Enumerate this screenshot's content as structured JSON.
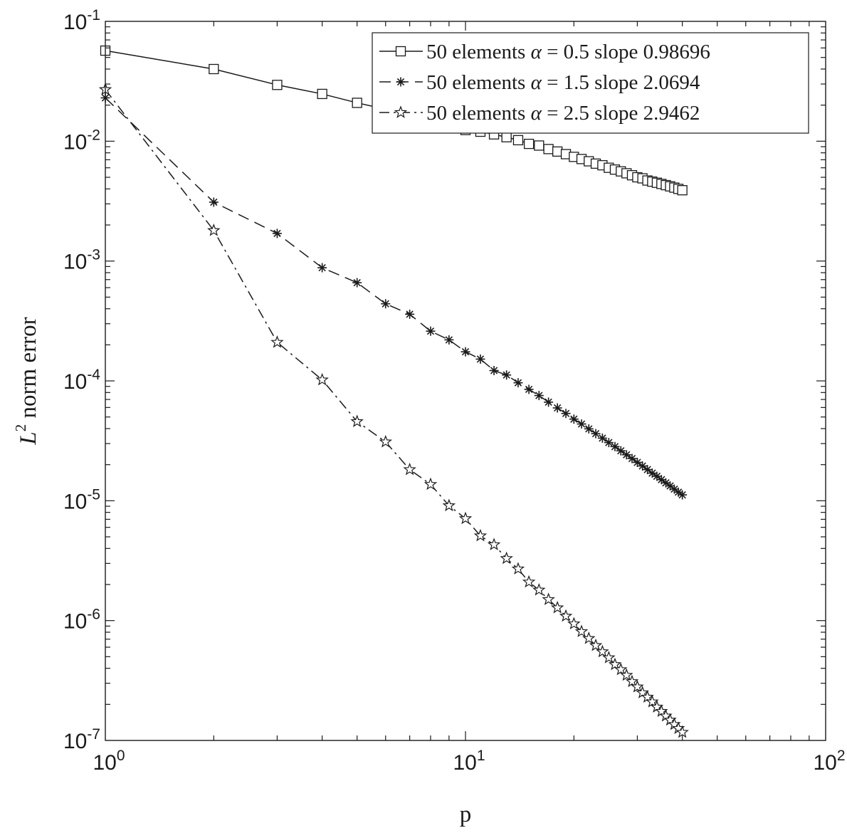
{
  "chart_data": {
    "type": "line",
    "xscale": "log",
    "yscale": "log",
    "xlim": [
      1,
      100
    ],
    "ylim": [
      1e-07,
      0.1
    ],
    "grid": false,
    "legend_position": "top-right",
    "xlabel": "p",
    "ylabel": "L² norm error",
    "ylabel_base": "L",
    "ylabel_sup": "2",
    "ylabel_rest": " norm error",
    "x_ticks": [
      {
        "base": "10",
        "exp": "0",
        "value": 1
      },
      {
        "base": "10",
        "exp": "1",
        "value": 10
      },
      {
        "base": "10",
        "exp": "2",
        "value": 100
      }
    ],
    "y_ticks": [
      {
        "base": "10",
        "exp": "-1",
        "value": 0.1
      },
      {
        "base": "10",
        "exp": "-2",
        "value": 0.01
      },
      {
        "base": "10",
        "exp": "-3",
        "value": 0.001
      },
      {
        "base": "10",
        "exp": "-4",
        "value": 0.0001
      },
      {
        "base": "10",
        "exp": "-5",
        "value": 1e-05
      },
      {
        "base": "10",
        "exp": "-6",
        "value": 1e-06
      },
      {
        "base": "10",
        "exp": "-7",
        "value": 1e-07
      }
    ],
    "x": [
      1,
      2,
      3,
      4,
      5,
      6,
      7,
      8,
      9,
      10,
      11,
      12,
      13,
      14,
      15,
      16,
      17,
      18,
      19,
      20,
      21,
      22,
      23,
      24,
      25,
      26,
      27,
      28,
      29,
      30,
      31,
      32,
      33,
      34,
      35,
      36,
      37,
      38,
      39,
      40
    ],
    "series": [
      {
        "name": "50 elements α = 0.5 slope 0.98696",
        "legend_prefix": "50 elements ",
        "legend_symbol": "α",
        "legend_suffix": " = 0.5 slope 0.98696",
        "marker": "square",
        "linestyle": "solid",
        "color": "#1a1a1a",
        "values": [
          0.057,
          0.04,
          0.0295,
          0.0248,
          0.0209,
          0.0185,
          0.0164,
          0.0148,
          0.0135,
          0.0124,
          0.012,
          0.0114,
          0.0108,
          0.0102,
          0.0095,
          0.0092,
          0.0086,
          0.0082,
          0.0078,
          0.0074,
          0.0071,
          0.0068,
          0.0065,
          0.0063,
          0.006,
          0.0058,
          0.0056,
          0.0054,
          0.0052,
          0.005,
          0.0049,
          0.0047,
          0.0046,
          0.0045,
          0.0044,
          0.0043,
          0.0042,
          0.0041,
          0.004,
          0.0039
        ]
      },
      {
        "name": "50 elements α = 1.5 slope 2.0694",
        "legend_prefix": "50 elements ",
        "legend_symbol": "α",
        "legend_suffix": " = 1.5 slope 2.0694",
        "marker": "asterisk",
        "linestyle": "dashed",
        "color": "#1a1a1a",
        "values": [
          0.023,
          0.0031,
          0.0017,
          0.00088,
          0.00066,
          0.00044,
          0.00036,
          0.00026,
          0.00022,
          0.000175,
          0.000152,
          0.000122,
          0.000112,
          9.65e-05,
          8.5e-05,
          7.55e-05,
          6.65e-05,
          5.95e-05,
          5.35e-05,
          4.8e-05,
          4.37e-05,
          3.98e-05,
          3.63e-05,
          3.33e-05,
          3.06e-05,
          2.83e-05,
          2.61e-05,
          2.42e-05,
          2.25e-05,
          2.09e-05,
          1.95e-05,
          1.82e-05,
          1.7e-05,
          1.6e-05,
          1.5e-05,
          1.41e-05,
          1.33e-05,
          1.25e-05,
          1.18e-05,
          1.12e-05
        ]
      },
      {
        "name": "50 elements α = 2.5 slope 2.9462",
        "legend_prefix": "50 elements ",
        "legend_symbol": "α",
        "legend_suffix": " = 2.5 slope 2.9462",
        "marker": "star",
        "linestyle": "dashdot",
        "color": "#1a1a1a",
        "values": [
          0.027,
          0.0018,
          0.00021,
          0.000102,
          4.58e-05,
          3.1e-05,
          1.82e-05,
          1.37e-05,
          9.1e-06,
          7.1e-06,
          5.1e-06,
          4.3e-06,
          3.3e-06,
          2.7e-06,
          2.1e-06,
          1.8e-06,
          1.5e-06,
          1.28e-06,
          1.09e-06,
          9.4e-07,
          8.1e-07,
          7.1e-07,
          6.2e-07,
          5.5e-07,
          4.9e-07,
          4.3e-07,
          3.9e-07,
          3.5e-07,
          3.1e-07,
          2.8e-07,
          2.5e-07,
          2.3e-07,
          2.1e-07,
          1.9e-07,
          1.75e-07,
          1.6e-07,
          1.48e-07,
          1.36e-07,
          1.26e-07,
          1.17e-07
        ]
      }
    ]
  }
}
